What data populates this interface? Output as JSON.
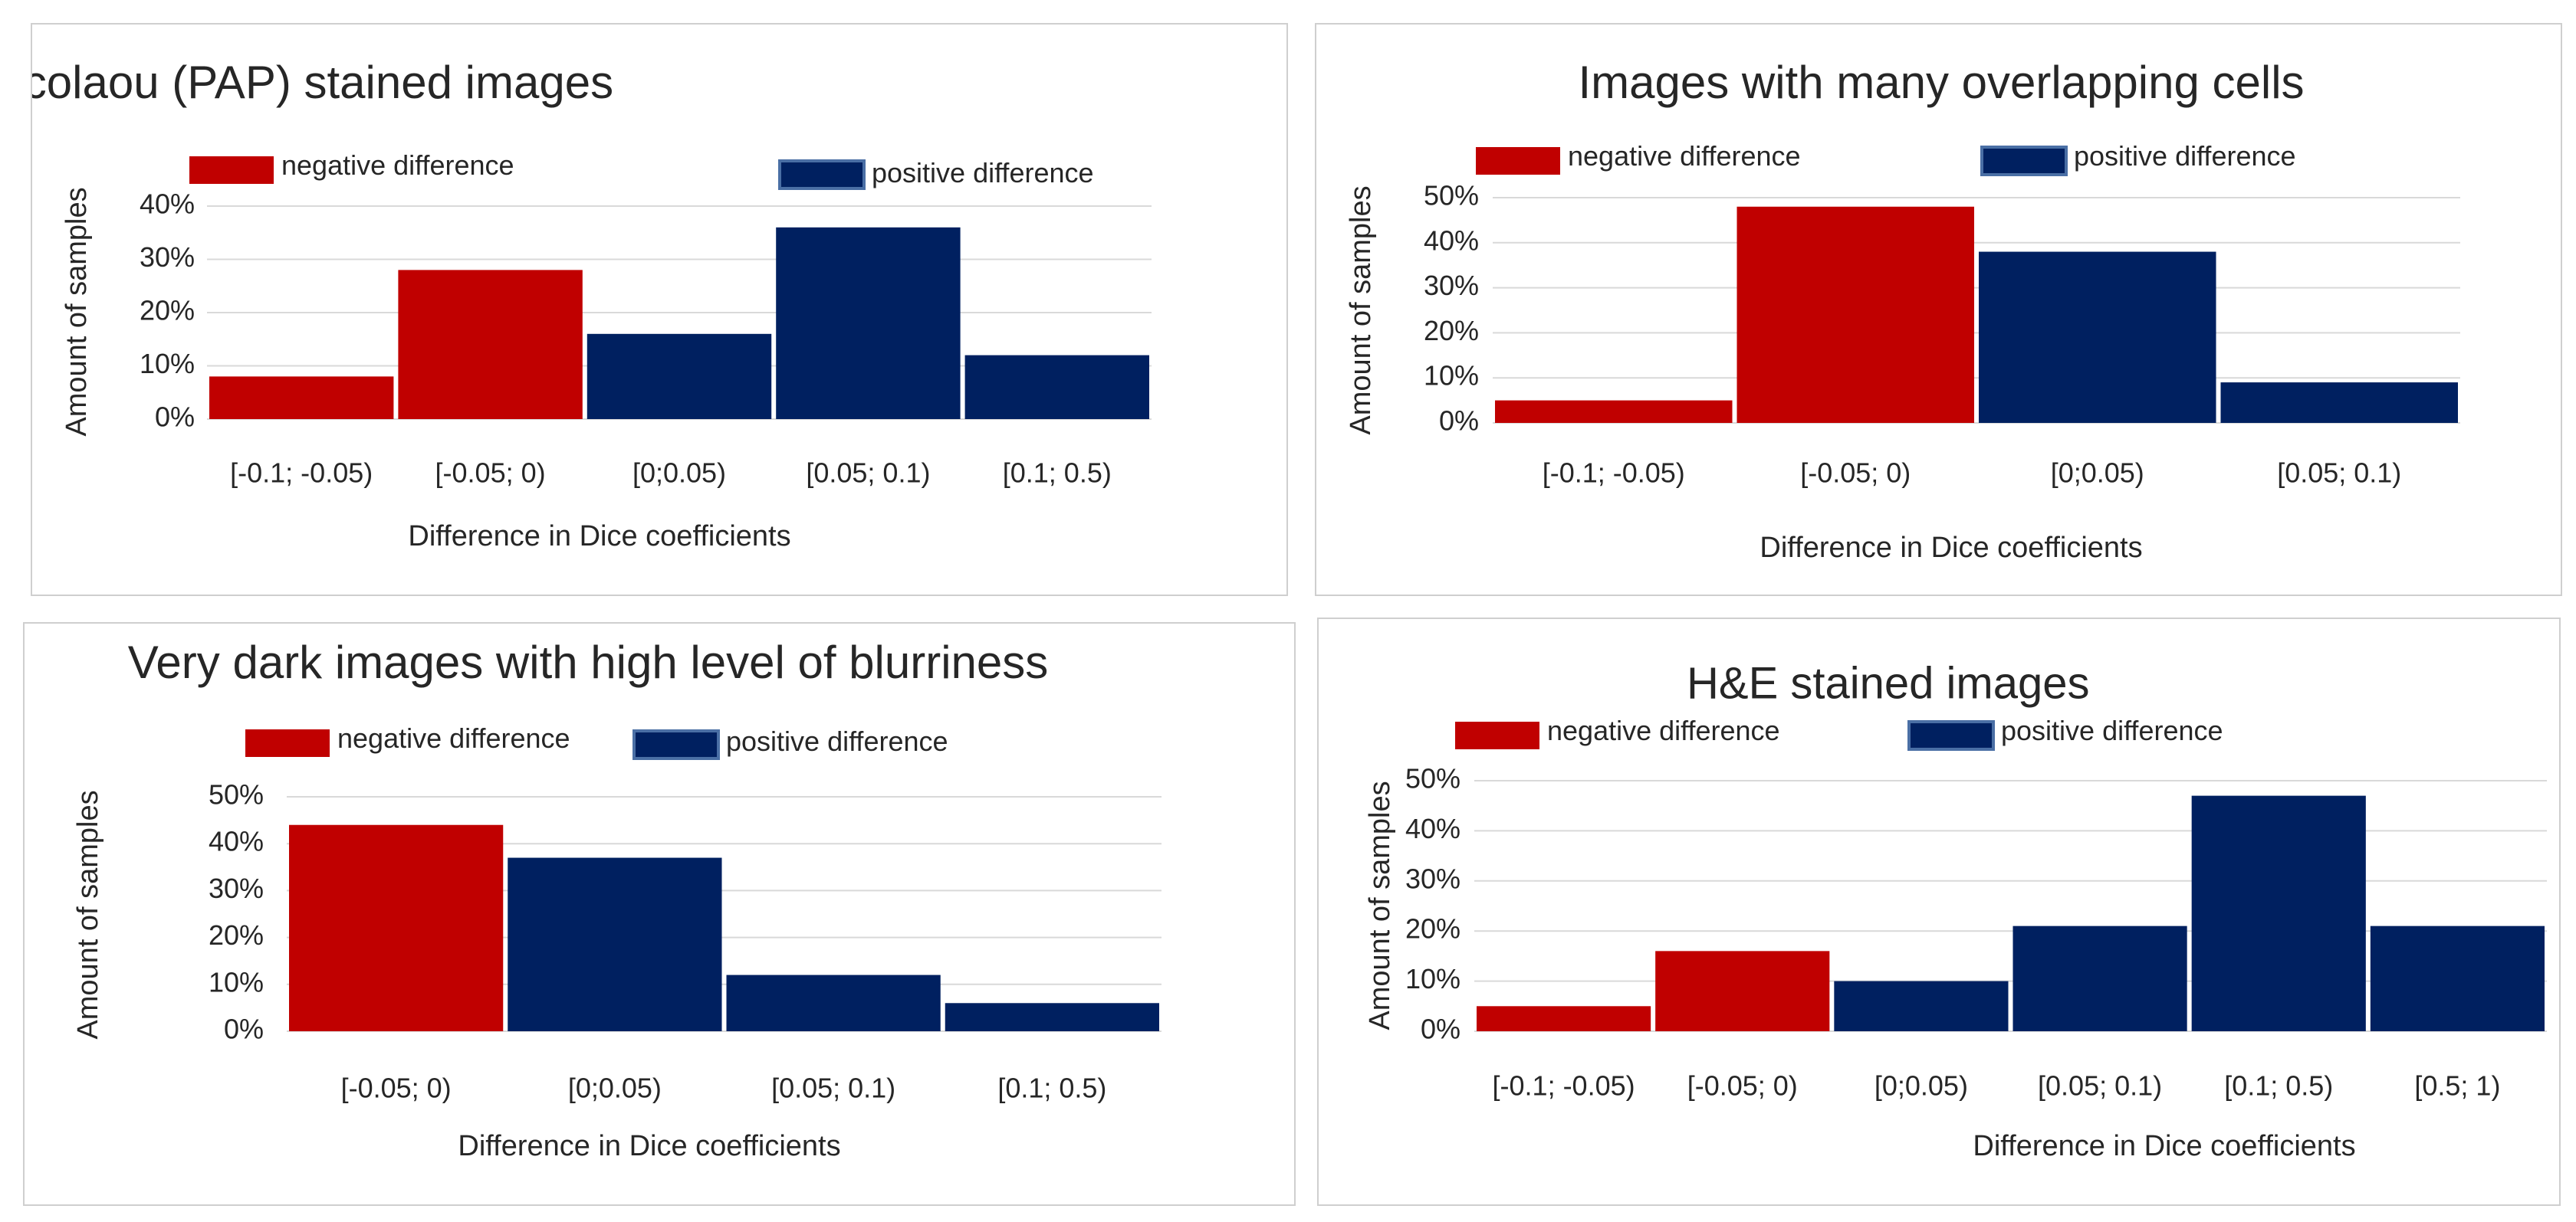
{
  "colors": {
    "negative": "#c00000",
    "positive": "#002060",
    "positive_border": "#4a6fa5",
    "grid": "#d9d9d9",
    "text": "#262626"
  },
  "chart_data": [
    {
      "type": "bar",
      "title": "Papanocolaou (PAP) stained images",
      "xlabel": "Difference in Dice coefficients",
      "ylabel": "Amount of samples",
      "legend": [
        "negative difference",
        "positive difference"
      ],
      "legend_position": "top",
      "grid": true,
      "yticks": [
        "0%",
        "10%",
        "20%",
        "30%",
        "40%"
      ],
      "ylim": [
        0,
        40
      ],
      "categories": [
        "[-0.1; -0.05)",
        "[-0.05; 0)",
        "[0;0.05)",
        "[0.05; 0.1)",
        "[0.1; 0.5)"
      ],
      "values": [
        8,
        28,
        16,
        36,
        12
      ],
      "sign": [
        "negative",
        "negative",
        "positive",
        "positive",
        "positive"
      ]
    },
    {
      "type": "bar",
      "title": "Images with many overlapping cells",
      "xlabel": "Difference in Dice coefficients",
      "ylabel": "Amount of samples",
      "legend": [
        "negative difference",
        "positive difference"
      ],
      "legend_position": "top",
      "grid": true,
      "yticks": [
        "0%",
        "10%",
        "20%",
        "30%",
        "40%",
        "50%"
      ],
      "ylim": [
        0,
        50
      ],
      "categories": [
        "[-0.1; -0.05)",
        "[-0.05; 0)",
        "[0;0.05)",
        "[0.05; 0.1)"
      ],
      "values": [
        5,
        48,
        38,
        9
      ],
      "sign": [
        "negative",
        "negative",
        "positive",
        "positive"
      ]
    },
    {
      "type": "bar",
      "title": "Very dark images with high level of blurriness",
      "xlabel": "Difference in Dice coefficients",
      "ylabel": "Amount of samples",
      "legend": [
        "negative difference",
        "positive difference"
      ],
      "legend_position": "top",
      "grid": true,
      "yticks": [
        "0%",
        "10%",
        "20%",
        "30%",
        "40%",
        "50%"
      ],
      "ylim": [
        0,
        50
      ],
      "categories": [
        "[-0.05; 0)",
        "[0;0.05)",
        "[0.05; 0.1)",
        "[0.1; 0.5)"
      ],
      "values": [
        44,
        37,
        12,
        6
      ],
      "sign": [
        "negative",
        "positive",
        "positive",
        "positive"
      ]
    },
    {
      "type": "bar",
      "title": "H&E stained images",
      "xlabel": "Difference in Dice coefficients",
      "ylabel": "Amount of samples",
      "legend": [
        "negative difference",
        "positive difference"
      ],
      "legend_position": "top",
      "grid": true,
      "yticks": [
        "0%",
        "10%",
        "20%",
        "30%",
        "40%",
        "50%"
      ],
      "ylim": [
        0,
        50
      ],
      "categories": [
        "[-0.1; -0.05)",
        "[-0.05; 0)",
        "[0;0.05)",
        "[0.05; 0.1)",
        "[0.1; 0.5)",
        "[0.5; 1)"
      ],
      "values": [
        5,
        16,
        10,
        21,
        47,
        21
      ],
      "sign": [
        "negative",
        "negative",
        "positive",
        "positive",
        "positive",
        "positive"
      ]
    }
  ]
}
